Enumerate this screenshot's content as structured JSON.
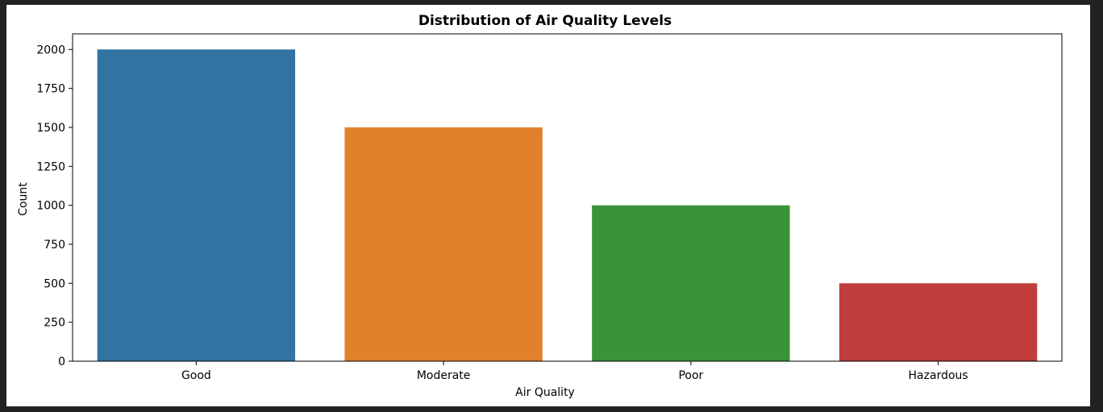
{
  "chart_data": {
    "type": "bar",
    "title": "Distribution of Air Quality Levels",
    "xlabel": "Air Quality",
    "ylabel": "Count",
    "categories": [
      "Good",
      "Moderate",
      "Poor",
      "Hazardous"
    ],
    "values": [
      2000,
      1500,
      1000,
      500
    ],
    "colors": [
      "#3274a1",
      "#e1812c",
      "#3a923a",
      "#c03d3e"
    ],
    "ylim": [
      0,
      2100
    ],
    "yticks": [
      0,
      250,
      500,
      750,
      1000,
      1250,
      1500,
      1750,
      2000
    ],
    "grid": false,
    "legend": "none"
  }
}
